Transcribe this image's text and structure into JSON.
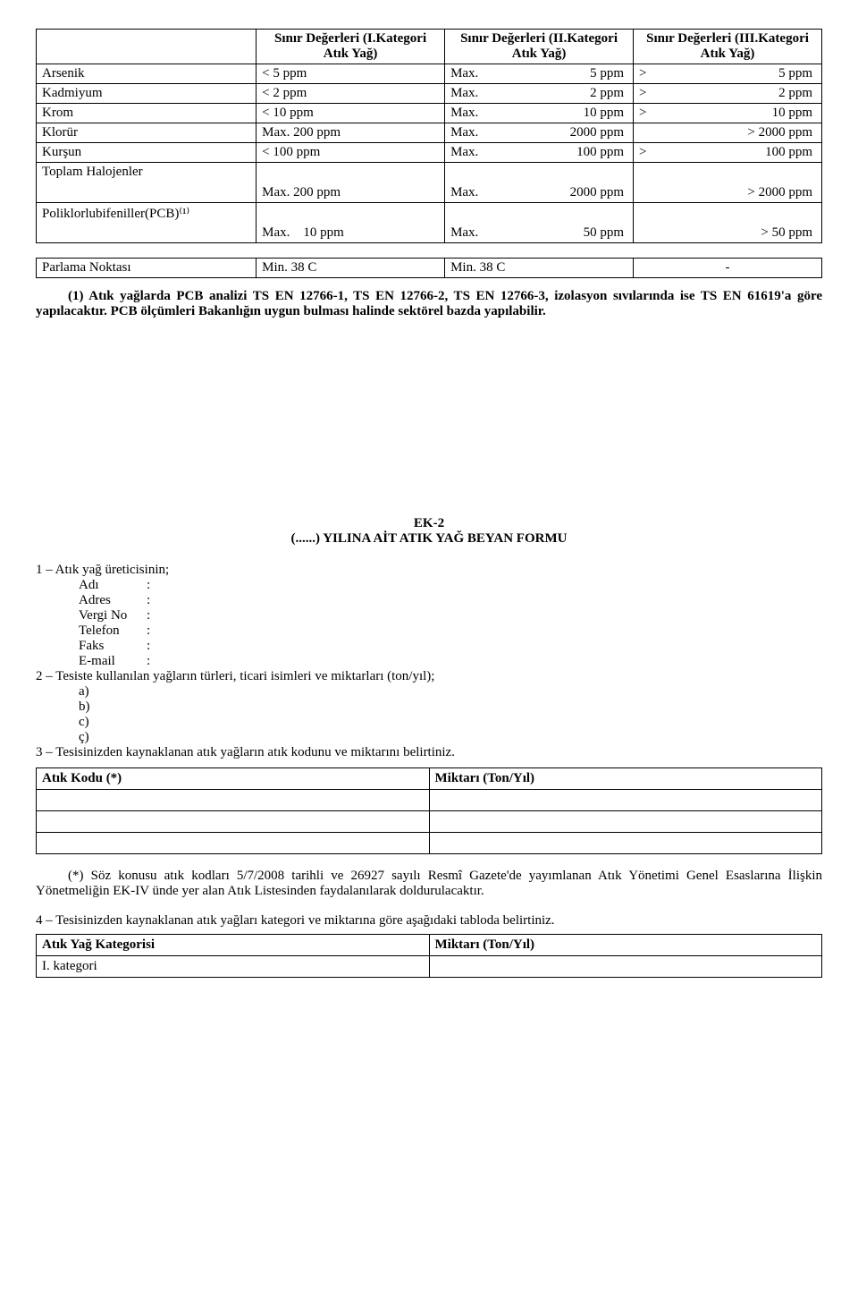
{
  "limits_table": {
    "headers": {
      "param": "",
      "c1": "Sınır Değerleri (I.Kategori Atık Yağ)",
      "c2": "Sınır Değerleri (II.Kategori Atık Yağ)",
      "c3": "Sınır Değerleri (III.Kategori Atık Yağ)"
    },
    "rows": [
      {
        "param": "Arsenik",
        "v1": "< 5 ppm",
        "v2l": "Max.",
        "v2r": "5 ppm",
        "v3l": ">",
        "v3r": "5 ppm"
      },
      {
        "param": "Kadmiyum",
        "v1": "< 2 ppm",
        "v2l": "Max.",
        "v2r": "2 ppm",
        "v3l": ">",
        "v3r": "2 ppm"
      },
      {
        "param": "Krom",
        "v1": "< 10 ppm",
        "v2l": "Max.",
        "v2r": "10 ppm",
        "v3l": ">",
        "v3r": "10 ppm"
      },
      {
        "param": "Klorür",
        "v1": "Max. 200 ppm",
        "v2l": "Max.",
        "v2r": "2000 ppm",
        "v3l": "",
        "v3r": "> 2000 ppm"
      },
      {
        "param": "Kurşun",
        "v1": "< 100 ppm",
        "v2l": "Max.",
        "v2r": "100 ppm",
        "v3l": ">",
        "v3r": "100 ppm"
      },
      {
        "param": "Toplam Halojenler",
        "v1": "Max. 200 ppm",
        "v2l": "Max.",
        "v2r": "2000 ppm",
        "v3l": "",
        "v3r": "> 2000 ppm",
        "tall": true
      },
      {
        "param": "Poliklorlubifeniller(PCB)⁽¹⁾",
        "v1": "Max.    10 ppm",
        "v2l": "Max.",
        "v2r": "50 ppm",
        "v3l": "",
        "v3r": "> 50 ppm",
        "tall": true
      }
    ]
  },
  "flash_table": {
    "param": "Parlama Noktası",
    "v1": "Min. 38 C",
    "v2": "Min. 38 C",
    "v3": "-"
  },
  "note": {
    "lead_bold": "(1)   Atık   yağlarda PCB analizi TS EN 12766-1, TS EN   12766-2, TS EN   12766-3,   izolasyon sıvılarında   ise TS EN   61619'a   göre   yapılacaktır.",
    "rest_bold": " PCB ölçümleri   Bakanlığın   uygun   bulması halinde sektörel bazda yapılabilir.",
    "rest": ""
  },
  "ek2": {
    "line1": "EK-2",
    "line2": "(......) YILINA AİT ATIK YAĞ BEYAN FORMU"
  },
  "form": {
    "p1_lead": "1 – Atık yağ üreticisinin;",
    "fields": [
      {
        "label": "Adı",
        "sep": ":"
      },
      {
        "label": "Adres",
        "sep": ":"
      },
      {
        "label": "Vergi No",
        "sep": ":"
      },
      {
        "label": "Telefon",
        "sep": ":"
      },
      {
        "label": "Faks",
        "sep": ":"
      },
      {
        "label": "E-mail",
        "sep": ":"
      }
    ],
    "p2": "2 – Tesiste kullanılan yağların türleri, ticari isimleri ve miktarları (ton/yıl);",
    "subitems": [
      "a)",
      "b)",
      "c)",
      "ç)"
    ],
    "p3": "3 – Tesisinizden kaynaklanan atık yağların atık kodunu ve miktarını belirtiniz."
  },
  "kod_table": {
    "h1": "Atık Kodu (*)",
    "h2": "Miktarı (Ton/Yıl)",
    "empty_rows": 3
  },
  "footnote": "(*) Söz konusu atık kodları 5/7/2008 tarihli ve 26927 sayılı Resmî Gazete'de yayımlanan Atık Yönetimi Genel Esaslarına İlişkin Yönetmeliğin EK-IV ünde yer alan Atık Listesinden faydalanılarak doldurulacaktır.",
  "p4": "4 – Tesisinizden kaynaklanan atık yağları kategori ve miktarına göre aşağıdaki tabloda belirtiniz.",
  "kategori_table": {
    "h1": "Atık Yağ Kategorisi",
    "h2": "Miktarı (Ton/Yıl)",
    "row1": "I. kategori"
  }
}
